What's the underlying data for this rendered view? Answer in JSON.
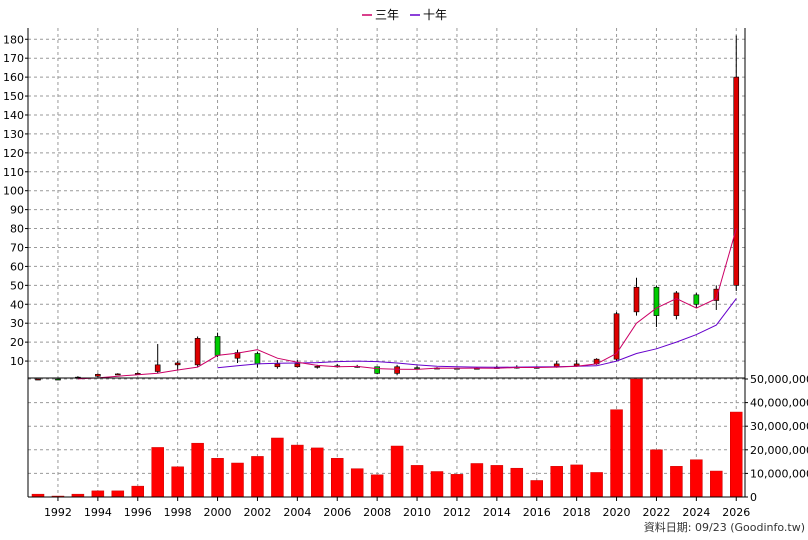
{
  "chart_data": {
    "type": "candlestick+bar",
    "legend": [
      {
        "name": "三年",
        "color": "#cc0066"
      },
      {
        "name": "十年",
        "color": "#6600cc"
      }
    ],
    "legend_position": "top-center",
    "grid": true,
    "price_axis": {
      "ylim": [
        0,
        185
      ],
      "ticks": [
        10,
        20,
        30,
        40,
        50,
        60,
        70,
        80,
        90,
        100,
        110,
        120,
        130,
        140,
        150,
        160,
        170,
        180
      ],
      "tick_labels": [
        "10",
        "20",
        "30",
        "40",
        "50",
        "60",
        "70",
        "80",
        "90",
        "100",
        "110",
        "120",
        "130",
        "140",
        "150",
        "160",
        "170",
        "180"
      ]
    },
    "volume_axis": {
      "ylim": [
        0,
        50000000
      ],
      "ticks": [
        0,
        10000000,
        20000000,
        30000000,
        40000000,
        50000000
      ],
      "tick_labels": [
        "0",
        "10,000,000",
        "20,000,000",
        "30,000,000",
        "40,000,000",
        "50,000,000"
      ]
    },
    "x_ticks": [
      1992,
      1994,
      1996,
      1998,
      2000,
      2002,
      2004,
      2006,
      2008,
      2010,
      2012,
      2014,
      2016,
      2018,
      2020,
      2022,
      2024,
      2026
    ],
    "x_tick_labels": [
      "1992",
      "1994",
      "1996",
      "1998",
      "2000",
      "2002",
      "2004",
      "2006",
      "2008",
      "2010",
      "2012",
      "2014",
      "2016",
      "2018",
      "2020",
      "2022",
      "2024",
      "2026"
    ],
    "years": [
      1991,
      1992,
      1993,
      1994,
      1995,
      1996,
      1997,
      1998,
      1999,
      2000,
      2001,
      2002,
      2003,
      2004,
      2005,
      2006,
      2007,
      2008,
      2009,
      2010,
      2011,
      2012,
      2013,
      2014,
      2015,
      2016,
      2017,
      2018,
      2019,
      2020,
      2021,
      2022,
      2023,
      2024,
      2025,
      2026
    ],
    "candles": [
      {
        "o": 0.5,
        "h": 0.6,
        "l": 0.3,
        "c": 0.4
      },
      {
        "o": 0.4,
        "h": 0.6,
        "l": 0.3,
        "c": 0.5
      },
      {
        "o": 1.5,
        "h": 2.0,
        "l": 0.8,
        "c": 0.9
      },
      {
        "o": 3.0,
        "h": 3.5,
        "l": 1.5,
        "c": 2.0
      },
      {
        "o": 3.2,
        "h": 3.6,
        "l": 2.8,
        "c": 3.0
      },
      {
        "o": 3.5,
        "h": 4.0,
        "l": 3.0,
        "c": 3.4
      },
      {
        "o": 8.0,
        "h": 19.0,
        "l": 3.5,
        "c": 4.5
      },
      {
        "o": 9.0,
        "h": 10.0,
        "l": 5.0,
        "c": 8.0
      },
      {
        "o": 22.0,
        "h": 23.0,
        "l": 7.0,
        "c": 8.0
      },
      {
        "o": 13.0,
        "h": 25.0,
        "l": 12.0,
        "c": 23.0
      },
      {
        "o": 14.5,
        "h": 16.0,
        "l": 9.0,
        "c": 11.5
      },
      {
        "o": 8.5,
        "h": 15.0,
        "l": 6.5,
        "c": 14.0
      },
      {
        "o": 8.5,
        "h": 10.5,
        "l": 6.0,
        "c": 7.0
      },
      {
        "o": 8.5,
        "h": 10.5,
        "l": 6.5,
        "c": 7.0
      },
      {
        "o": 7.2,
        "h": 8.0,
        "l": 6.0,
        "c": 7.0
      },
      {
        "o": 7.5,
        "h": 8.5,
        "l": 6.5,
        "c": 7.0
      },
      {
        "o": 7.2,
        "h": 8.0,
        "l": 6.5,
        "c": 7.0
      },
      {
        "o": 3.5,
        "h": 7.0,
        "l": 3.0,
        "c": 7.0
      },
      {
        "o": 7.0,
        "h": 8.0,
        "l": 2.5,
        "c": 3.5
      },
      {
        "o": 6.0,
        "h": 7.5,
        "l": 5.5,
        "c": 6.5
      },
      {
        "o": 6.3,
        "h": 6.8,
        "l": 5.8,
        "c": 6.0
      },
      {
        "o": 6.0,
        "h": 6.5,
        "l": 5.8,
        "c": 6.2
      },
      {
        "o": 6.2,
        "h": 6.8,
        "l": 5.8,
        "c": 6.0
      },
      {
        "o": 6.6,
        "h": 7.5,
        "l": 6.0,
        "c": 6.4
      },
      {
        "o": 6.8,
        "h": 7.8,
        "l": 6.0,
        "c": 6.6
      },
      {
        "o": 6.5,
        "h": 7.2,
        "l": 6.0,
        "c": 6.7
      },
      {
        "o": 8.5,
        "h": 10.0,
        "l": 6.5,
        "c": 7.0
      },
      {
        "o": 8.5,
        "h": 10.5,
        "l": 7.0,
        "c": 7.5
      },
      {
        "o": 11.0,
        "h": 11.5,
        "l": 8.0,
        "c": 8.5
      },
      {
        "o": 35.0,
        "h": 36.0,
        "l": 10.0,
        "c": 11.0
      },
      {
        "o": 49.0,
        "h": 54.0,
        "l": 34.0,
        "c": 36.0
      },
      {
        "o": 34.0,
        "h": 50.0,
        "l": 28.0,
        "c": 49.0
      },
      {
        "o": 46.0,
        "h": 47.0,
        "l": 32.0,
        "c": 34.0
      },
      {
        "o": 40.0,
        "h": 46.0,
        "l": 38.0,
        "c": 45.0
      },
      {
        "o": 48.0,
        "h": 50.0,
        "l": 37.0,
        "c": 42.0
      },
      {
        "o": 160.0,
        "h": 182.0,
        "l": 47.0,
        "c": 50.0
      }
    ],
    "ma3": [
      null,
      null,
      0.6,
      1.1,
      2.0,
      2.8,
      3.6,
      5.3,
      6.8,
      13.0,
      14.2,
      16.0,
      11.5,
      9.4,
      7.7,
      7.0,
      7.2,
      6.0,
      5.7,
      5.6,
      6.3,
      6.2,
      6.3,
      6.2,
      6.6,
      6.6,
      6.8,
      7.3,
      8.5,
      14.0,
      30.0,
      38.0,
      43.0,
      38.0,
      43.0,
      80.0
    ],
    "ma10": [
      null,
      null,
      null,
      null,
      null,
      null,
      null,
      null,
      null,
      6.5,
      7.5,
      8.5,
      8.8,
      9.0,
      9.2,
      9.7,
      10.0,
      9.7,
      9.0,
      8.0,
      7.3,
      7.0,
      6.8,
      6.7,
      6.8,
      6.9,
      7.0,
      7.3,
      7.5,
      10.0,
      14.0,
      16.5,
      20.0,
      24.0,
      29.0,
      43.0
    ],
    "volume": [
      1200000,
      400000,
      1200000,
      2600000,
      2600000,
      4600000,
      21000000,
      12800000,
      22800000,
      16400000,
      14400000,
      17200000,
      25000000,
      22000000,
      20800000,
      16400000,
      12000000,
      9400000,
      21600000,
      13400000,
      10800000,
      9600000,
      14200000,
      13400000,
      12200000,
      7000000,
      13000000,
      13600000,
      10400000,
      37000000,
      50000000,
      20000000,
      13000000,
      15800000,
      11000000,
      36000000
    ]
  },
  "footer": {
    "text": "資料日期: 09/23 (Goodinfo.tw)"
  }
}
